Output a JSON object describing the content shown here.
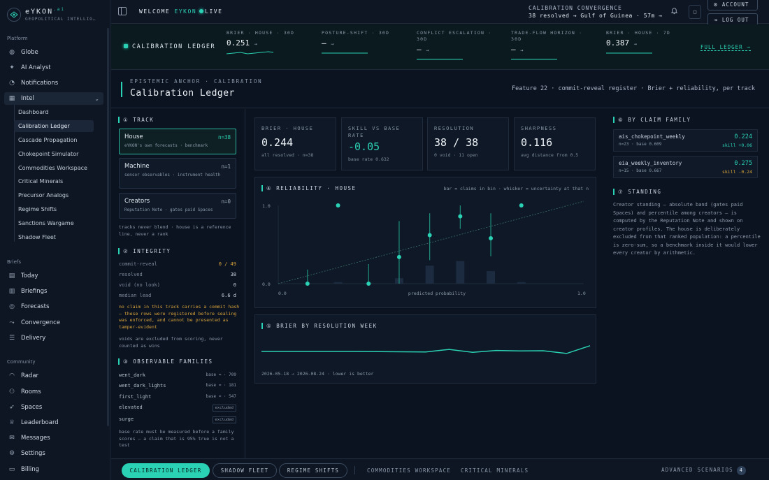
{
  "brand": {
    "name": "eYKON",
    "suffix": ".ai",
    "tagline": "GEOPOLITICAL INTELLIG…"
  },
  "sidebar": {
    "platform_label": "Platform",
    "platform": [
      {
        "label": "Globe",
        "icon": "globe-icon"
      },
      {
        "label": "AI Analyst",
        "icon": "sparkle-icon"
      },
      {
        "label": "Notifications",
        "icon": "bell-icon"
      },
      {
        "label": "Intel",
        "icon": "grid-icon"
      }
    ],
    "intel_items": [
      "Dashboard",
      "Calibration Ledger",
      "Cascade Propagation",
      "Chokepoint Simulator",
      "Commodities Workspace",
      "Critical Minerals",
      "Precursor Analogs",
      "Regime Shifts",
      "Sanctions Wargame",
      "Shadow Fleet"
    ],
    "briefs_label": "Briefs",
    "briefs": [
      "Today",
      "Briefings",
      "Forecasts",
      "Convergence",
      "Delivery"
    ],
    "community_label": "Community",
    "community": [
      "Radar",
      "Rooms",
      "Spaces",
      "Leaderboard",
      "Messages",
      "Settings",
      "Billing"
    ]
  },
  "header": {
    "welcome": "WELCOME",
    "user": "EYKON",
    "live": "LIVE",
    "convergence_label": "CALIBRATION  CONVERGENCE",
    "convergence_value": "38 resolved →  Gulf of Guinea · 57m →",
    "square_icon": "□",
    "account": "ACCOUNT",
    "logout": "LOG OUT"
  },
  "ticker": {
    "title": "CALIBRATION LEDGER",
    "metrics": [
      {
        "label": "BRIER · HOUSE · 30D",
        "value": "0.251",
        "arrow": "→",
        "spark": true
      },
      {
        "label": "POSTURE-SHIFT · 30D",
        "value": "—",
        "arrow": "→",
        "spark": false
      },
      {
        "label": "CONFLICT ESCALATION · 30D",
        "value": "—",
        "arrow": "→",
        "spark": false
      },
      {
        "label": "TRADE-FLOW HORIZON · 30D",
        "value": "—",
        "arrow": "→",
        "spark": false
      },
      {
        "label": "BRIER · HOUSE · 7D",
        "value": "0.387",
        "arrow": "→",
        "spark": false
      }
    ],
    "full_ledger": "FULL LEDGER →"
  },
  "page": {
    "eyebrow": "EPISTEMIC ANCHOR · CALIBRATION",
    "title": "Calibration Ledger",
    "right": "Feature 22 · commit-reveal register · Brier + reliability, per track"
  },
  "track": {
    "heading": "① TRACK",
    "cards": [
      {
        "name": "House",
        "n": "n=38",
        "desc": "eYKON's own forecasts · benchmark"
      },
      {
        "name": "Machine",
        "n": "n=1",
        "desc": "sensor observables · instrument health"
      },
      {
        "name": "Creators",
        "n": "n=0",
        "desc": "Reputation Note · gates paid Spaces"
      }
    ],
    "note": "tracks never blend · house is a reference line, never a rank"
  },
  "integrity": {
    "heading": "② INTEGRITY",
    "rows": [
      {
        "k": "commit-reveal",
        "v": "0 / 49"
      },
      {
        "k": "resolved",
        "v": "38"
      },
      {
        "k": "void (no look)",
        "v": "0"
      },
      {
        "k": "median lead",
        "v": "6.6 d"
      }
    ],
    "warning": "no claim in this track carries a commit hash — these rows were registered before sealing was enforced, and cannot be presented as tamper-evident",
    "note": "voids are excluded from scoring, never counted as wins"
  },
  "families": {
    "heading": "③ OBSERVABLE FAMILIES",
    "rows": [
      {
        "name": "went_dark",
        "base": "base ≈ · 709"
      },
      {
        "name": "went_dark_lights",
        "base": "base ≈ · 181"
      },
      {
        "name": "first_light",
        "base": "base ≈ · 547"
      },
      {
        "name": "elevated",
        "tag": "excluded"
      },
      {
        "name": "surge",
        "tag": "excluded"
      }
    ],
    "note": "base rate must be measured before a family scores — a claim that is 95% true is not a test"
  },
  "stats": [
    {
      "label": "BRIER · HOUSE",
      "value": "0.244",
      "sub": "all resolved · n=38",
      "teal": false
    },
    {
      "label": "SKILL VS BASE RATE",
      "value": "-0.05",
      "sub": "base rate 0.632",
      "teal": true
    },
    {
      "label": "RESOLUTION",
      "value": "38 / 38",
      "sub": "0 void · 11 open",
      "teal": false
    },
    {
      "label": "SHARPNESS",
      "value": "0.116",
      "sub": "avg distance from 0.5",
      "teal": false
    }
  ],
  "reliability": {
    "heading": "④ RELIABILITY · HOUSE",
    "legend": "bar = claims in bin · whisker = uncertainty at that n",
    "y_top": "1.0",
    "y_bottom": "0.0",
    "x_left": "0.0",
    "x_right": "1.0",
    "xlabel": "predicted probability"
  },
  "brier_week": {
    "heading": "⑤ BRIER BY RESOLUTION WEEK",
    "footer": "2026-05-18 → 2026-08-24 · lower is better"
  },
  "chart_data": [
    {
      "type": "scatter",
      "title": "RELIABILITY · HOUSE",
      "xlabel": "predicted probability",
      "ylabel": "",
      "xlim": [
        0,
        1
      ],
      "ylim": [
        0,
        1
      ],
      "points": [
        {
          "x": 0.05,
          "y": 0.0,
          "lo": 0.0,
          "hi": 0.18,
          "bar": 0.0
        },
        {
          "x": 0.15,
          "y": 1.0,
          "lo": 1.0,
          "hi": 1.0,
          "bar": 0.02
        },
        {
          "x": 0.25,
          "y": 0.0,
          "lo": 0.0,
          "hi": 0.25,
          "bar": 0.01
        },
        {
          "x": 0.35,
          "y": 0.34,
          "lo": 0.0,
          "hi": 0.8,
          "bar": 0.07
        },
        {
          "x": 0.45,
          "y": 0.62,
          "lo": 0.3,
          "hi": 0.9,
          "bar": 0.23
        },
        {
          "x": 0.55,
          "y": 0.86,
          "lo": 0.7,
          "hi": 1.0,
          "bar": 0.29
        },
        {
          "x": 0.65,
          "y": 0.58,
          "lo": 0.35,
          "hi": 0.9,
          "bar": 0.16
        },
        {
          "x": 0.75,
          "y": 1.0,
          "lo": 1.0,
          "hi": 1.0,
          "bar": 0.02
        }
      ]
    },
    {
      "type": "line",
      "title": "BRIER BY RESOLUTION WEEK",
      "x": [
        "2026-05-18",
        "2026-05-25",
        "2026-06-01",
        "2026-06-08",
        "2026-06-15",
        "2026-06-22",
        "2026-06-29",
        "2026-07-06",
        "2026-07-13",
        "2026-07-20",
        "2026-07-27",
        "2026-08-03",
        "2026-08-10",
        "2026-08-17",
        "2026-08-24"
      ],
      "series": [
        {
          "values": [
            0.25,
            0.25,
            0.25,
            0.25,
            0.25,
            0.245,
            0.24,
            0.235,
            0.31,
            0.225,
            0.28,
            0.265,
            0.27,
            0.19,
            0.42
          ]
        }
      ],
      "ylim": [
        0,
        1
      ]
    }
  ],
  "claim_family": {
    "heading": "⑥ BY CLAIM FAMILY",
    "cards": [
      {
        "name": "ais_chokepoint_weekly",
        "sub": "n=23 · base 0.609",
        "score": "0.224",
        "skill": "skill +0.06",
        "skill_color": "#2bd1b4"
      },
      {
        "name": "eia_weekly_inventory",
        "sub": "n=15 · base 0.667",
        "score": "0.275",
        "skill": "skill -0.24",
        "skill_color": "#d8a43a"
      }
    ]
  },
  "standing": {
    "heading": "⑦ STANDING",
    "text": "Creator standing — absolute band (gates paid Spaces) and percentile among creators — is computed by the Reputation Note and shown on creator profiles. The house is deliberately excluded from that ranked population: a percentile is zero-sum, so a benchmark inside it would lower every creator by arithmetic."
  },
  "bottom": {
    "tabs": [
      "CALIBRATION LEDGER",
      "SHADOW FLEET",
      "REGIME SHIFTS"
    ],
    "links": [
      "COMMODITIES WORKSPACE",
      "CRITICAL MINERALS"
    ],
    "advanced": "ADVANCED SCENARIOS",
    "advanced_count": "4"
  },
  "colors": {
    "accent": "#2bd1b4",
    "amber": "#d8a43a",
    "bg": "#0b1220"
  }
}
